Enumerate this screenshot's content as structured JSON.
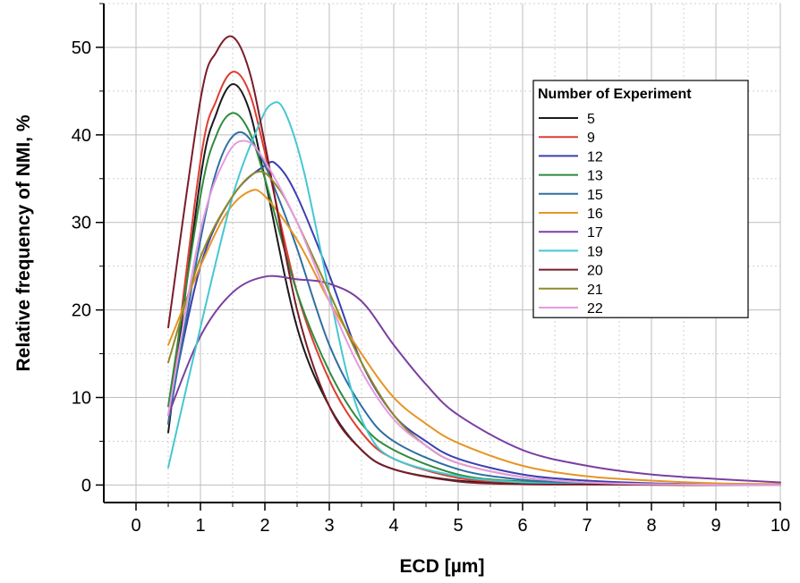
{
  "chart_data": {
    "type": "line",
    "xlabel": "ECD [µm]",
    "ylabel": "Relative frequency of NMI, %",
    "xlim": [
      -0.5,
      10
    ],
    "ylim": [
      -2,
      55
    ],
    "x_ticks": [
      0,
      1,
      2,
      3,
      4,
      5,
      6,
      7,
      8,
      9,
      10
    ],
    "y_ticks": [
      0,
      10,
      20,
      30,
      40,
      50
    ],
    "grid": true,
    "legend": {
      "title": "Number of Experiment",
      "position": "right"
    },
    "series": [
      {
        "name": "5",
        "color": "#1a1a1a",
        "x": [
          0.5,
          1.0,
          1.25,
          1.5,
          1.75,
          2.0,
          2.5,
          3.0,
          3.5,
          4.0,
          5.0,
          6.0,
          7.0,
          8.0,
          9.0,
          10.0
        ],
        "y": [
          6,
          35,
          42.5,
          45.8,
          43,
          35,
          18,
          9,
          4,
          1.8,
          0.5,
          0.2,
          0.1,
          0.05,
          0.02,
          0
        ]
      },
      {
        "name": "9",
        "color": "#e03c31",
        "x": [
          0.5,
          1.0,
          1.25,
          1.5,
          1.75,
          2.0,
          2.5,
          3.0,
          3.5,
          4.0,
          5.0,
          6.0,
          7.0,
          8.0,
          9.0,
          10.0
        ],
        "y": [
          7,
          37,
          44,
          47.2,
          45,
          38,
          22,
          12,
          6,
          3,
          0.8,
          0.3,
          0.1,
          0.05,
          0.02,
          0
        ]
      },
      {
        "name": "12",
        "color": "#3b3fb0",
        "x": [
          0.5,
          1.0,
          1.5,
          2.0,
          2.2,
          2.5,
          3.0,
          3.5,
          4.0,
          4.5,
          5.0,
          6.0,
          7.0,
          8.0,
          9.0,
          10.0
        ],
        "y": [
          8,
          25,
          33,
          36.5,
          36.5,
          33,
          24,
          14,
          8,
          5,
          3,
          1.2,
          0.5,
          0.2,
          0.1,
          0.05
        ]
      },
      {
        "name": "13",
        "color": "#2e8b3e",
        "x": [
          0.5,
          1.0,
          1.25,
          1.5,
          1.75,
          2.0,
          2.5,
          3.0,
          3.5,
          4.0,
          5.0,
          6.0,
          7.0,
          8.0,
          9.0,
          10.0
        ],
        "y": [
          9,
          33,
          40,
          42.5,
          40.5,
          35,
          22,
          13,
          7,
          4,
          1.2,
          0.4,
          0.15,
          0.05,
          0.02,
          0
        ]
      },
      {
        "name": "15",
        "color": "#2f6fa3",
        "x": [
          0.5,
          1.0,
          1.3,
          1.6,
          1.9,
          2.2,
          2.5,
          3.0,
          3.5,
          4.0,
          5.0,
          6.0,
          7.0,
          8.0,
          9.0,
          10.0
        ],
        "y": [
          7,
          28,
          37,
          40.3,
          38,
          33,
          27,
          16,
          9,
          5,
          1.8,
          0.6,
          0.2,
          0.1,
          0.03,
          0
        ]
      },
      {
        "name": "16",
        "color": "#e69526",
        "x": [
          0.5,
          1.0,
          1.4,
          1.75,
          2.0,
          2.5,
          3.0,
          3.5,
          4.0,
          4.5,
          5.0,
          6.0,
          7.0,
          8.0,
          9.0,
          10.0
        ],
        "y": [
          16,
          25,
          31,
          33.5,
          33,
          28,
          21,
          15,
          10,
          7,
          4.8,
          2.2,
          1,
          0.5,
          0.2,
          0.1
        ]
      },
      {
        "name": "17",
        "color": "#7b3fa0",
        "x": [
          0.5,
          1.0,
          1.5,
          2.0,
          2.5,
          3.0,
          3.5,
          4.0,
          4.5,
          5.0,
          6.0,
          7.0,
          8.0,
          9.0,
          10.0
        ],
        "y": [
          8,
          17,
          22,
          23.8,
          23.5,
          23,
          21,
          16,
          11.5,
          8,
          4,
          2.2,
          1.2,
          0.7,
          0.3
        ]
      },
      {
        "name": "19",
        "color": "#45c7d1",
        "x": [
          0.5,
          1.0,
          1.5,
          1.9,
          2.1,
          2.3,
          2.6,
          3.0,
          3.3,
          3.6,
          4.0,
          5.0,
          6.0,
          7.0,
          8.0,
          10.0
        ],
        "y": [
          2,
          18,
          33,
          41,
          43.5,
          42.8,
          36,
          22,
          12,
          6,
          3,
          1,
          0.3,
          0.1,
          0.05,
          0
        ]
      },
      {
        "name": "20",
        "color": "#7a1c2a",
        "x": [
          0.5,
          1.0,
          1.25,
          1.5,
          1.75,
          2.0,
          2.5,
          3.0,
          3.5,
          4.0,
          5.0,
          6.0,
          7.0,
          8.0,
          9.0,
          10.0
        ],
        "y": [
          18,
          44,
          49.5,
          51.2,
          47.5,
          39,
          20,
          9,
          4,
          1.8,
          0.4,
          0.1,
          0.05,
          0.02,
          0,
          0
        ]
      },
      {
        "name": "21",
        "color": "#8f8a2a",
        "x": [
          0.5,
          1.0,
          1.5,
          1.9,
          2.2,
          2.5,
          3.0,
          3.5,
          4.0,
          4.5,
          5.0,
          6.0,
          7.0,
          8.0,
          9.0,
          10.0
        ],
        "y": [
          14,
          26,
          33,
          35.8,
          34,
          30,
          22,
          14,
          8,
          4.5,
          2.5,
          0.9,
          0.3,
          0.1,
          0.03,
          0
        ]
      },
      {
        "name": "22",
        "color": "#e69ae0",
        "x": [
          0.5,
          1.0,
          1.4,
          1.7,
          2.0,
          2.5,
          3.0,
          3.5,
          4.0,
          4.5,
          5.0,
          6.0,
          7.0,
          8.0,
          9.0,
          10.0
        ],
        "y": [
          8,
          29,
          37.5,
          39.3,
          37,
          30,
          21,
          13,
          7.5,
          4.5,
          2.5,
          0.9,
          0.3,
          0.1,
          0.03,
          0
        ]
      }
    ]
  }
}
